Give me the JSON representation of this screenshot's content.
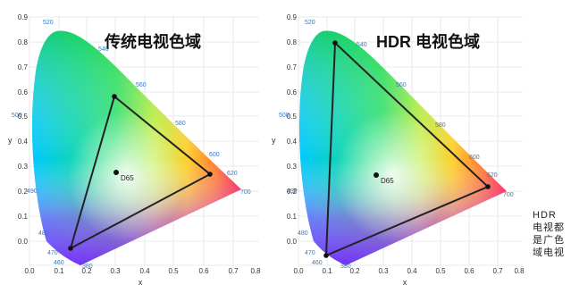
{
  "left": {
    "title": "传统电视色域",
    "white_point": "D65",
    "y_axis_label": "y",
    "x_axis_label": "x",
    "y_ticks": [
      "0.9",
      "0.8",
      "0.7",
      "0.6",
      "0.5",
      "0.4",
      "0.3",
      "0.2",
      "0.1",
      "0.0"
    ],
    "x_ticks": [
      "0.0",
      "0.1",
      "0.2",
      "0.3",
      "0.4",
      "0.5",
      "0.6",
      "0.7",
      "0.8"
    ],
    "wavelengths": [
      "520",
      "540",
      "560",
      "580",
      "600",
      "620",
      "700",
      "500",
      "490",
      "480",
      "470",
      "460",
      "380"
    ]
  },
  "right": {
    "title": "HDR 电视色域",
    "white_point": "D65",
    "y_axis_label": "y",
    "x_axis_label": "x",
    "y_ticks": [
      "0.9",
      "0.8",
      "0.7",
      "0.6",
      "0.5",
      "0.4",
      "0.3",
      "0.2",
      "0.1",
      "0.0"
    ],
    "x_ticks": [
      "0.0",
      "0.1",
      "0.2",
      "0.3",
      "0.4",
      "0.5",
      "0.6",
      "0.7",
      "0.8"
    ],
    "wavelengths": [
      "520",
      "540",
      "560",
      "580",
      "600",
      "620",
      "700",
      "500",
      "490",
      "480",
      "470",
      "460",
      "380"
    ]
  },
  "side_note": {
    "line1": "HDR",
    "line2": "电视都",
    "line3": "是广色",
    "line4": "域电视"
  }
}
